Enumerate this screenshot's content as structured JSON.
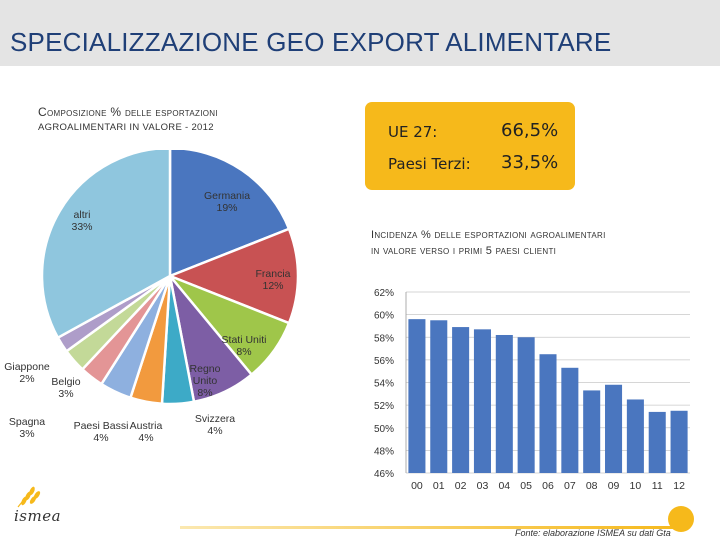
{
  "header": {
    "title": "SPECIALIZZAZIONE GEO EXPORT ALIMENTARE"
  },
  "pie_caption": {
    "line1": "Composizione % delle esportazioni",
    "line2": "agroalimentari in valore - 2012"
  },
  "shares": [
    {
      "label": "UE 27:",
      "value": "66,5%"
    },
    {
      "label": "Paesi Terzi:",
      "value": "33,5%"
    }
  ],
  "bar_caption": {
    "line1": "Incidenza % delle esportazioni agroalimentari",
    "line2": "in valore verso i primi 5 paesi clienti"
  },
  "logo": {
    "text": "ismea"
  },
  "source": "Fonte: elaborazione ISMEA su dati Gta",
  "colors": {
    "accent": "#f6b91b",
    "header_bg": "#e4e4e4",
    "title": "#1f3f77"
  },
  "chart_data": [
    {
      "type": "pie",
      "slices": [
        {
          "label": "Germania",
          "value_label": "19%",
          "value": 19,
          "color": "#4a76bf"
        },
        {
          "label": "Francia",
          "value_label": "12%",
          "value": 12,
          "color": "#c85253"
        },
        {
          "label": "Stati Uniti",
          "value_label": "8%",
          "value": 8,
          "color": "#9fc64a"
        },
        {
          "label": "Regno Unito",
          "value_label": "8%",
          "value": 8,
          "color": "#7d5ea5"
        },
        {
          "label": "Svizzera",
          "value_label": "4%",
          "value": 4,
          "color": "#3daac7"
        },
        {
          "label": "Austria",
          "value_label": "4%",
          "value": 4,
          "color": "#f29a3e"
        },
        {
          "label": "Paesi Bassi",
          "value_label": "4%",
          "value": 4,
          "color": "#8eb0df"
        },
        {
          "label": "Spagna",
          "value_label": "3%",
          "value": 3,
          "color": "#e39596"
        },
        {
          "label": "Belgio",
          "value_label": "3%",
          "value": 3,
          "color": "#c3d998"
        },
        {
          "label": "Giappone",
          "value_label": "2%",
          "value": 2,
          "color": "#ae9dc9"
        },
        {
          "label": "altri",
          "value_label": "33%",
          "value": 33,
          "color": "#8fc6de"
        }
      ]
    },
    {
      "type": "bar",
      "categories": [
        "00",
        "01",
        "02",
        "03",
        "04",
        "05",
        "06",
        "07",
        "08",
        "09",
        "10",
        "11",
        "12"
      ],
      "values": [
        59.6,
        59.5,
        58.9,
        58.7,
        58.2,
        58.0,
        56.5,
        55.3,
        53.3,
        53.8,
        52.5,
        51.4,
        51.5
      ],
      "ylim": [
        46,
        62
      ],
      "yticks": [
        46,
        48,
        50,
        52,
        54,
        56,
        58,
        60,
        62
      ],
      "ytick_labels": [
        "46%",
        "48%",
        "50%",
        "52%",
        "54%",
        "56%",
        "58%",
        "60%",
        "62%"
      ],
      "grid": true,
      "bar_color": "#4a76bf"
    }
  ]
}
